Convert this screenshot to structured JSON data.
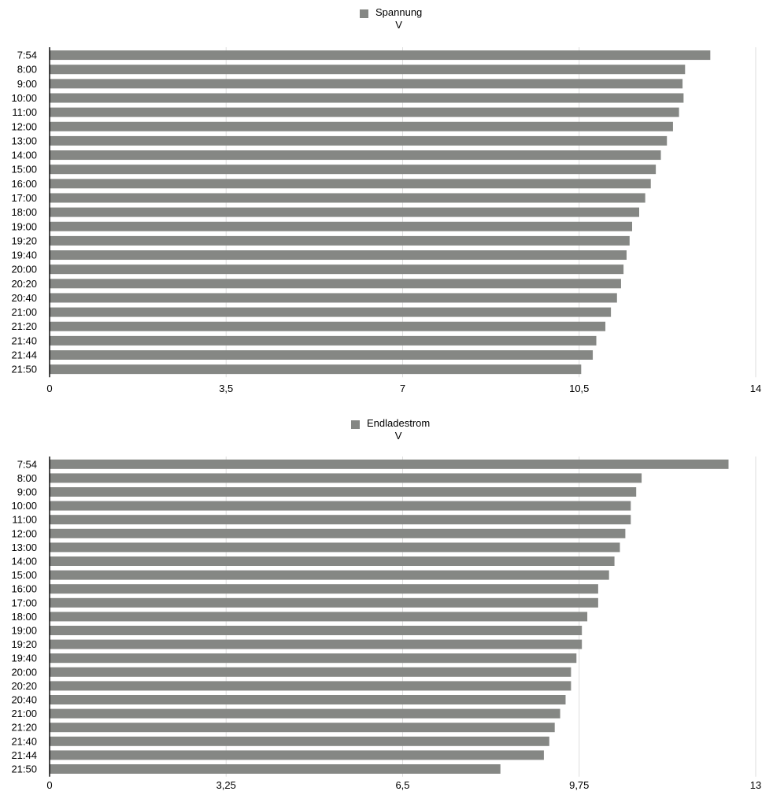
{
  "chart_data": [
    {
      "type": "bar",
      "orientation": "horizontal",
      "series": [
        {
          "name": "Spannung",
          "unit": "V",
          "color": "#858784",
          "values": [
            13.1,
            12.6,
            12.55,
            12.57,
            12.48,
            12.36,
            12.24,
            12.12,
            12.02,
            11.92,
            11.81,
            11.69,
            11.55,
            11.5,
            11.44,
            11.38,
            11.33,
            11.25,
            11.13,
            11.02,
            10.84,
            10.77,
            10.54
          ]
        }
      ],
      "categories": [
        "7:54",
        "8:00",
        "9:00",
        "10:00",
        "11:00",
        "12:00",
        "13:00",
        "14:00",
        "15:00",
        "16:00",
        "17:00",
        "18:00",
        "19:00",
        "19:20",
        "19:40",
        "20:00",
        "20:20",
        "20:40",
        "21:00",
        "21:20",
        "21:40",
        "21:44",
        "21:50"
      ],
      "xlim": [
        0,
        14
      ],
      "ticks": [
        0,
        3.5,
        7,
        10.5,
        14
      ],
      "tick_labels": [
        "0",
        "3,5",
        "7",
        "10,5",
        "14"
      ],
      "grid": true,
      "legend": "top-center"
    },
    {
      "type": "bar",
      "orientation": "horizontal",
      "series": [
        {
          "name": "Endladestrom",
          "unit": "V",
          "color": "#858784",
          "values": [
            12.5,
            10.9,
            10.8,
            10.7,
            10.7,
            10.6,
            10.5,
            10.4,
            10.3,
            10.1,
            10.1,
            9.9,
            9.8,
            9.8,
            9.7,
            9.6,
            9.6,
            9.5,
            9.4,
            9.3,
            9.2,
            9.1,
            8.3
          ]
        }
      ],
      "categories": [
        "7:54",
        "8:00",
        "9:00",
        "10:00",
        "11:00",
        "12:00",
        "13:00",
        "14:00",
        "15:00",
        "16:00",
        "17:00",
        "18:00",
        "19:00",
        "19:20",
        "19:40",
        "20:00",
        "20:20",
        "20:40",
        "21:00",
        "21:20",
        "21:40",
        "21:44",
        "21:50"
      ],
      "xlim": [
        0,
        13
      ],
      "ticks": [
        0,
        3.25,
        6.5,
        9.75,
        13
      ],
      "tick_labels": [
        "0",
        "3,25",
        "6,5",
        "9,75",
        "13"
      ],
      "grid": true,
      "legend": "top-center"
    }
  ]
}
